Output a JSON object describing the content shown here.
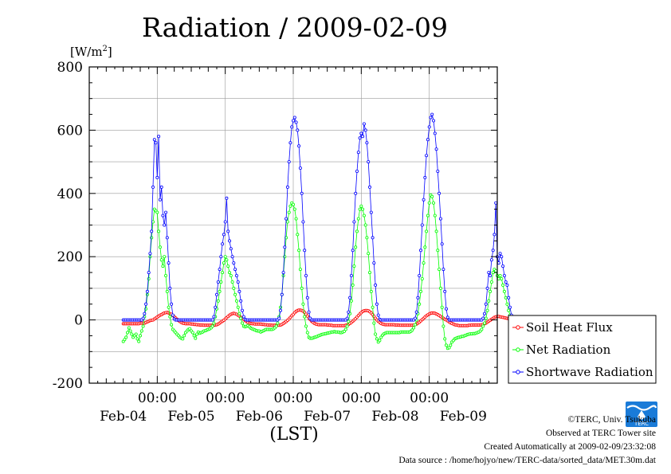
{
  "chart_data": {
    "type": "line",
    "title": "Radiation / 2009-02-09",
    "ylabel_unit": "[W/m",
    "ylabel_unit_sup": "2",
    "ylabel_unit_close": "]",
    "xlabel": "(LST)",
    "ylim": [
      -200,
      800
    ],
    "yticks": [
      "-200",
      "0",
      "200",
      "400",
      "600",
      "800"
    ],
    "ytick_values": [
      -200,
      0,
      200,
      400,
      600,
      800
    ],
    "xlim_days": [
      0,
      6
    ],
    "xtick_days": [
      1,
      2,
      3,
      4,
      5
    ],
    "xtick_time_labels": [
      "00:00",
      "00:00",
      "00:00",
      "00:00",
      "00:00"
    ],
    "xtick_date_labels": [
      "Feb-04",
      "Feb-05",
      "Feb-06",
      "Feb-07",
      "Feb-08",
      "Feb-09"
    ],
    "grid": true,
    "legend_position": "right",
    "sampling": "30 min",
    "series": [
      {
        "name": "Soil Heat Flux",
        "color": "#ff0000",
        "x_start": "2009-02-03 00:00",
        "values": [
          -12,
          -12,
          -12,
          -12,
          -12,
          -12,
          -12,
          -12,
          -12,
          -12,
          -12,
          -12,
          -10,
          -10,
          -10,
          -10,
          -8,
          -6,
          -4,
          -2,
          -1,
          0,
          3,
          6,
          9,
          12,
          15,
          17,
          20,
          22,
          23,
          24,
          22,
          20,
          18,
          14,
          10,
          6,
          2,
          -2,
          -5,
          -8,
          -10,
          -11,
          -12,
          -12,
          -12,
          -12,
          -13,
          -13,
          -14,
          -14,
          -15,
          -15,
          -16,
          -16,
          -16,
          -17,
          -17,
          -17,
          -17,
          -17,
          -17,
          -17,
          -17,
          -16,
          -15,
          -13,
          -10,
          -7,
          -4,
          -1,
          3,
          7,
          11,
          15,
          18,
          20,
          21,
          20,
          18,
          15,
          12,
          8,
          5,
          2,
          -2,
          -5,
          -8,
          -10,
          -11,
          -12,
          -12,
          -13,
          -13,
          -13,
          -13,
          -13,
          -14,
          -14,
          -15,
          -15,
          -16,
          -16,
          -16,
          -17,
          -17,
          -17,
          -17,
          -17,
          -17,
          -16,
          -14,
          -11,
          -8,
          -5,
          -1,
          3,
          8,
          13,
          18,
          23,
          27,
          30,
          31,
          31,
          30,
          28,
          24,
          18,
          12,
          6,
          1,
          -4,
          -8,
          -11,
          -13,
          -14,
          -15,
          -15,
          -15,
          -15,
          -15,
          -15,
          -16,
          -16,
          -17,
          -17,
          -18,
          -18,
          -18,
          -18,
          -18,
          -18,
          -18,
          -18,
          -18,
          -17,
          -16,
          -14,
          -11,
          -8,
          -4,
          0,
          4,
          9,
          14,
          19,
          23,
          27,
          29,
          30,
          30,
          29,
          26,
          22,
          17,
          11,
          5,
          0,
          -4,
          -8,
          -11,
          -13,
          -14,
          -15,
          -15,
          -15,
          -15,
          -15,
          -15,
          -15,
          -16,
          -16,
          -16,
          -17,
          -17,
          -17,
          -17,
          -17,
          -17,
          -17,
          -17,
          -17,
          -17,
          -16,
          -15,
          -13,
          -10,
          -7,
          -3,
          1,
          5,
          9,
          13,
          16,
          19,
          21,
          22,
          22,
          21,
          19,
          17,
          14,
          11,
          8,
          5,
          2,
          0,
          -3,
          -6,
          -9,
          -11,
          -13,
          -15,
          -16,
          -17,
          -18,
          -18,
          -18,
          -18,
          -18,
          -18,
          -18,
          -17,
          -17,
          -16,
          -16,
          -16,
          -16,
          -16,
          -16,
          -16,
          -15,
          -14,
          -12,
          -10,
          -7,
          -4,
          -1,
          2,
          5,
          8,
          10,
          11,
          11,
          10,
          9,
          8,
          7,
          6,
          5,
          4,
          3,
          2,
          1,
          0,
          -1,
          -2,
          -3,
          -4,
          -4,
          -5,
          -5,
          -5,
          -5,
          -5,
          -5
        ]
      },
      {
        "name": "Net Radiation",
        "color": "#00ff00",
        "x_start": "2009-02-03 00:00",
        "values": [
          -68,
          -62,
          -55,
          -40,
          -25,
          -35,
          -45,
          -55,
          -50,
          -45,
          -60,
          -68,
          -50,
          -35,
          -20,
          10,
          35,
          80,
          130,
          200,
          260,
          310,
          350,
          345,
          340,
          280,
          230,
          190,
          170,
          200,
          140,
          90,
          40,
          10,
          -15,
          -30,
          -35,
          -40,
          -45,
          -50,
          -55,
          -58,
          -60,
          -50,
          -40,
          -35,
          -30,
          -28,
          -35,
          -40,
          -50,
          -58,
          -45,
          -38,
          -42,
          -40,
          -38,
          -35,
          -34,
          -32,
          -30,
          -28,
          -25,
          -20,
          -10,
          10,
          35,
          60,
          90,
          120,
          150,
          180,
          200,
          190,
          170,
          150,
          140,
          120,
          100,
          80,
          60,
          40,
          20,
          5,
          -10,
          -20,
          -22,
          -20,
          -18,
          -22,
          -26,
          -28,
          -30,
          -32,
          -34,
          -35,
          -35,
          -38,
          -36,
          -34,
          -32,
          -30,
          -30,
          -30,
          -30,
          -30,
          -28,
          -25,
          -20,
          -10,
          10,
          40,
          80,
          140,
          200,
          260,
          310,
          340,
          360,
          370,
          365,
          350,
          320,
          270,
          220,
          160,
          100,
          50,
          10,
          -20,
          -40,
          -55,
          -58,
          -58,
          -57,
          -55,
          -54,
          -52,
          -50,
          -48,
          -46,
          -45,
          -44,
          -43,
          -42,
          -41,
          -40,
          -38,
          -38,
          -37,
          -38,
          -38,
          -38,
          -40,
          -40,
          -38,
          -36,
          -30,
          -20,
          -5,
          20,
          60,
          110,
          170,
          230,
          280,
          320,
          350,
          360,
          350,
          330,
          300,
          260,
          210,
          150,
          90,
          40,
          -10,
          -45,
          -60,
          -70,
          -65,
          -55,
          -48,
          -44,
          -42,
          -40,
          -40,
          -40,
          -40,
          -40,
          -40,
          -40,
          -40,
          -40,
          -40,
          -38,
          -38,
          -38,
          -38,
          -38,
          -38,
          -38,
          -36,
          -32,
          -25,
          -15,
          0,
          20,
          50,
          90,
          130,
          180,
          230,
          280,
          330,
          370,
          395,
          390,
          370,
          330,
          280,
          220,
          160,
          100,
          40,
          -20,
          -60,
          -80,
          -90,
          -88,
          -80,
          -70,
          -65,
          -60,
          -58,
          -56,
          -55,
          -54,
          -52,
          -52,
          -50,
          -48,
          -46,
          -45,
          -44,
          -44,
          -43,
          -43,
          -42,
          -40,
          -38,
          -35,
          -30,
          -20,
          -10,
          5,
          30,
          60,
          90,
          120,
          150,
          160,
          155,
          140,
          130,
          140,
          130,
          110,
          90,
          70,
          50,
          30,
          15,
          5,
          0,
          -2,
          -5,
          -6,
          -6,
          -5,
          -6,
          -8,
          -10,
          -12,
          -14,
          -15,
          -16
        ]
      },
      {
        "name": "Shortwave Radiation",
        "color": "#0000ff",
        "x_start": "2009-02-03 00:00",
        "values": [
          0,
          0,
          0,
          0,
          0,
          0,
          0,
          0,
          0,
          0,
          0,
          0,
          0,
          0,
          5,
          20,
          50,
          90,
          150,
          210,
          280,
          420,
          570,
          560,
          450,
          580,
          380,
          420,
          330,
          300,
          340,
          260,
          180,
          100,
          50,
          15,
          3,
          0,
          0,
          0,
          0,
          0,
          0,
          0,
          0,
          0,
          0,
          0,
          0,
          0,
          0,
          0,
          0,
          0,
          0,
          0,
          0,
          0,
          0,
          0,
          0,
          0,
          0,
          0,
          10,
          40,
          80,
          120,
          160,
          200,
          240,
          270,
          310,
          385,
          280,
          250,
          225,
          200,
          180,
          160,
          140,
          120,
          90,
          60,
          30,
          10,
          2,
          0,
          0,
          0,
          0,
          0,
          0,
          0,
          0,
          0,
          0,
          0,
          0,
          0,
          0,
          0,
          0,
          0,
          0,
          0,
          0,
          0,
          0,
          0,
          5,
          30,
          80,
          150,
          230,
          320,
          420,
          500,
          560,
          610,
          630,
          640,
          625,
          600,
          550,
          480,
          400,
          310,
          220,
          140,
          70,
          25,
          5,
          0,
          0,
          0,
          0,
          0,
          0,
          0,
          0,
          0,
          0,
          0,
          0,
          0,
          0,
          0,
          0,
          0,
          0,
          0,
          0,
          0,
          0,
          0,
          0,
          0,
          5,
          25,
          70,
          140,
          220,
          310,
          400,
          470,
          530,
          575,
          590,
          580,
          620,
          600,
          560,
          500,
          420,
          340,
          260,
          180,
          110,
          50,
          15,
          2,
          0,
          0,
          0,
          0,
          0,
          0,
          0,
          0,
          0,
          0,
          0,
          0,
          0,
          0,
          0,
          0,
          0,
          0,
          0,
          0,
          0,
          0,
          0,
          0,
          5,
          25,
          70,
          140,
          220,
          300,
          380,
          450,
          520,
          570,
          610,
          640,
          650,
          630,
          590,
          540,
          470,
          400,
          320,
          240,
          160,
          90,
          35,
          8,
          0,
          0,
          0,
          0,
          0,
          0,
          0,
          0,
          0,
          0,
          0,
          0,
          0,
          0,
          0,
          0,
          0,
          0,
          0,
          0,
          0,
          0,
          0,
          0,
          5,
          20,
          50,
          100,
          150,
          140,
          190,
          220,
          270,
          370,
          200,
          180,
          210,
          200,
          170,
          140,
          120,
          110,
          70,
          40,
          15,
          3,
          0,
          0,
          0,
          0,
          0,
          0,
          0,
          0,
          0,
          0,
          0,
          0
        ]
      }
    ]
  },
  "footer": {
    "copyright": "©TERC, Univ. Tsukuba",
    "site": "Observed at TERC Tower site",
    "created": "Created Automatically at 2009-02-09/23:32:08",
    "source": "Data source : /home/hojyo/new/TERC-data/sorted_data/MET.30m.dat"
  },
  "logo": {
    "text": "TERC",
    "color": "#1a7bd8"
  }
}
